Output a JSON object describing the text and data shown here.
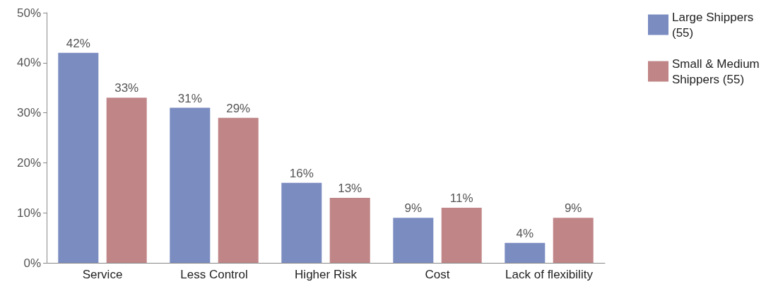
{
  "chart_data": {
    "type": "bar",
    "categories": [
      "Service",
      "Less Control",
      "Higher Risk",
      "Cost",
      "Lack of flexibility"
    ],
    "series": [
      {
        "name": "Large Shippers (55)",
        "color": "#7b8cc0",
        "values": [
          42,
          31,
          16,
          9,
          4
        ],
        "value_labels": [
          "42%",
          "31%",
          "16%",
          "9%",
          "4%"
        ]
      },
      {
        "name": "Small & Medium Shippers (55)",
        "color": "#c08587",
        "values": [
          33,
          29,
          13,
          11,
          9
        ],
        "value_labels": [
          "33%",
          "29%",
          "13%",
          "11%",
          "9%"
        ]
      }
    ],
    "ylim": [
      0,
      50
    ],
    "yticks": [
      {
        "value": 0,
        "label": "0%"
      },
      {
        "value": 10,
        "label": "10%"
      },
      {
        "value": 20,
        "label": "20%"
      },
      {
        "value": 30,
        "label": "30%"
      },
      {
        "value": 40,
        "label": "40%"
      },
      {
        "value": 50,
        "label": "50%"
      }
    ],
    "grid": false,
    "legend": "top right"
  }
}
